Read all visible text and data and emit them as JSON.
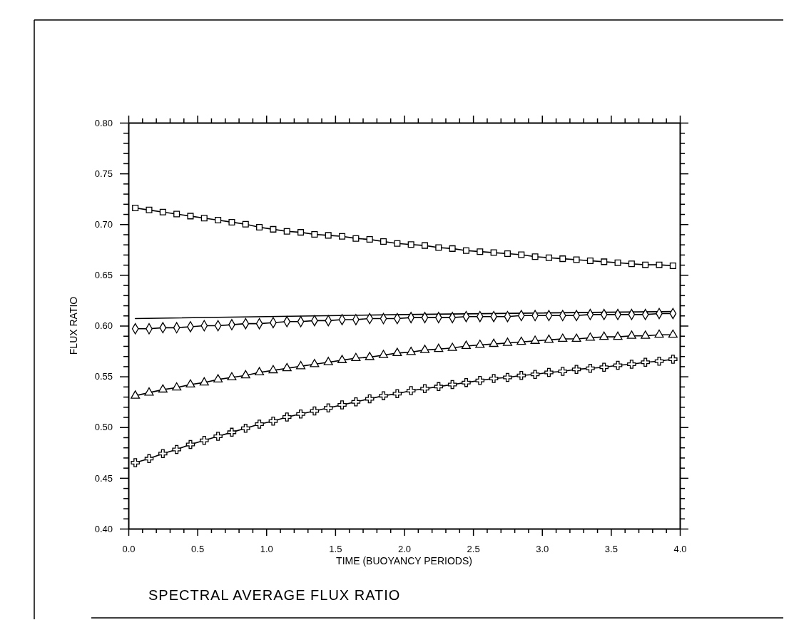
{
  "chart_data": {
    "type": "line",
    "title": "SPECTRAL AVERAGE FLUX RATIO",
    "xlabel": "TIME (BUOYANCY PERIODS)",
    "ylabel": "FLUX RATIO",
    "x": [
      0.05,
      0.15,
      0.25,
      0.35,
      0.45,
      0.55,
      0.65,
      0.75,
      0.85,
      0.95,
      1.05,
      1.15,
      1.25,
      1.35,
      1.45,
      1.55,
      1.65,
      1.75,
      1.85,
      1.95,
      2.05,
      2.15,
      2.25,
      2.35,
      2.45,
      2.55,
      2.65,
      2.75,
      2.85,
      2.95,
      3.05,
      3.15,
      3.25,
      3.35,
      3.45,
      3.55,
      3.65,
      3.75,
      3.85,
      3.95
    ],
    "series": [
      {
        "color": "#000000",
        "marker": "square",
        "values": [
          0.716,
          0.714,
          0.712,
          0.71,
          0.708,
          0.706,
          0.704,
          0.702,
          0.7,
          0.697,
          0.695,
          0.693,
          0.692,
          0.69,
          0.689,
          0.688,
          0.686,
          0.685,
          0.683,
          0.681,
          0.68,
          0.679,
          0.677,
          0.676,
          0.674,
          0.673,
          0.672,
          0.671,
          0.67,
          0.668,
          0.667,
          0.666,
          0.665,
          0.664,
          0.663,
          0.662,
          0.661,
          0.66,
          0.66,
          0.659
        ]
      },
      {
        "color": "#000000",
        "marker": "none",
        "x": [
          0.05,
          2.0,
          3.95
        ],
        "values": [
          0.607,
          0.611,
          0.614
        ]
      },
      {
        "color": "#000000",
        "marker": "diamond",
        "values": [
          0.597,
          0.597,
          0.598,
          0.598,
          0.599,
          0.6,
          0.6,
          0.601,
          0.602,
          0.602,
          0.603,
          0.604,
          0.604,
          0.605,
          0.605,
          0.606,
          0.606,
          0.607,
          0.607,
          0.607,
          0.608,
          0.608,
          0.608,
          0.608,
          0.609,
          0.609,
          0.609,
          0.609,
          0.61,
          0.61,
          0.61,
          0.61,
          0.61,
          0.611,
          0.611,
          0.611,
          0.611,
          0.611,
          0.612,
          0.612
        ]
      },
      {
        "color": "#000000",
        "marker": "triangle",
        "values": [
          0.531,
          0.534,
          0.537,
          0.539,
          0.542,
          0.544,
          0.547,
          0.549,
          0.551,
          0.554,
          0.556,
          0.558,
          0.56,
          0.562,
          0.564,
          0.566,
          0.568,
          0.569,
          0.571,
          0.573,
          0.574,
          0.576,
          0.577,
          0.578,
          0.58,
          0.581,
          0.582,
          0.583,
          0.584,
          0.585,
          0.586,
          0.587,
          0.587,
          0.588,
          0.589,
          0.589,
          0.59,
          0.59,
          0.591,
          0.591
        ]
      },
      {
        "color": "#000000",
        "marker": "cross",
        "values": [
          0.465,
          0.469,
          0.474,
          0.478,
          0.483,
          0.487,
          0.491,
          0.495,
          0.499,
          0.503,
          0.506,
          0.51,
          0.513,
          0.516,
          0.519,
          0.522,
          0.525,
          0.528,
          0.531,
          0.533,
          0.536,
          0.538,
          0.54,
          0.542,
          0.544,
          0.546,
          0.548,
          0.549,
          0.551,
          0.552,
          0.554,
          0.555,
          0.557,
          0.558,
          0.559,
          0.561,
          0.562,
          0.564,
          0.565,
          0.567
        ]
      }
    ],
    "xlim": [
      0,
      4
    ],
    "xticks": [
      {
        "value": 0,
        "label": "0.0"
      },
      {
        "value": 0.1,
        "label": null
      },
      {
        "value": 0.2,
        "label": null
      },
      {
        "value": 0.3,
        "label": null
      },
      {
        "value": 0.4,
        "label": null
      },
      {
        "value": 0.5,
        "label": "0.5"
      },
      {
        "value": 0.6,
        "label": null
      },
      {
        "value": 0.7,
        "label": null
      },
      {
        "value": 0.8,
        "label": null
      },
      {
        "value": 0.9,
        "label": null
      },
      {
        "value": 1,
        "label": "1.0"
      },
      {
        "value": 1.1,
        "label": null
      },
      {
        "value": 1.2,
        "label": null
      },
      {
        "value": 1.3,
        "label": null
      },
      {
        "value": 1.4,
        "label": null
      },
      {
        "value": 1.5,
        "label": "1.5"
      },
      {
        "value": 1.6,
        "label": null
      },
      {
        "value": 1.7,
        "label": null
      },
      {
        "value": 1.8,
        "label": null
      },
      {
        "value": 1.9,
        "label": null
      },
      {
        "value": 2,
        "label": "2.0"
      },
      {
        "value": 2.1,
        "label": null
      },
      {
        "value": 2.2,
        "label": null
      },
      {
        "value": 2.3,
        "label": null
      },
      {
        "value": 2.4,
        "label": null
      },
      {
        "value": 2.5,
        "label": "2.5"
      },
      {
        "value": 2.6,
        "label": null
      },
      {
        "value": 2.7,
        "label": null
      },
      {
        "value": 2.8,
        "label": null
      },
      {
        "value": 2.9,
        "label": null
      },
      {
        "value": 3,
        "label": "3.0"
      },
      {
        "value": 3.1,
        "label": null
      },
      {
        "value": 3.2,
        "label": null
      },
      {
        "value": 3.3,
        "label": null
      },
      {
        "value": 3.4,
        "label": null
      },
      {
        "value": 3.5,
        "label": "3.5"
      },
      {
        "value": 3.6,
        "label": null
      },
      {
        "value": 3.7,
        "label": null
      },
      {
        "value": 3.8,
        "label": null
      },
      {
        "value": 3.9,
        "label": null
      },
      {
        "value": 4,
        "label": "4.0"
      }
    ],
    "ylim": [
      0.4,
      0.8
    ],
    "yticks": [
      {
        "value": 0.4,
        "label": "0.40"
      },
      {
        "value": 0.41,
        "label": null
      },
      {
        "value": 0.42,
        "label": null
      },
      {
        "value": 0.43,
        "label": null
      },
      {
        "value": 0.44,
        "label": null
      },
      {
        "value": 0.45,
        "label": "0.45"
      },
      {
        "value": 0.46,
        "label": null
      },
      {
        "value": 0.47,
        "label": null
      },
      {
        "value": 0.48,
        "label": null
      },
      {
        "value": 0.49,
        "label": null
      },
      {
        "value": 0.5,
        "label": "0.50"
      },
      {
        "value": 0.51,
        "label": null
      },
      {
        "value": 0.52,
        "label": null
      },
      {
        "value": 0.53,
        "label": null
      },
      {
        "value": 0.54,
        "label": null
      },
      {
        "value": 0.55,
        "label": "0.55"
      },
      {
        "value": 0.56,
        "label": null
      },
      {
        "value": 0.57,
        "label": null
      },
      {
        "value": 0.58,
        "label": null
      },
      {
        "value": 0.59,
        "label": null
      },
      {
        "value": 0.6,
        "label": "0.60"
      },
      {
        "value": 0.61,
        "label": null
      },
      {
        "value": 0.62,
        "label": null
      },
      {
        "value": 0.63,
        "label": null
      },
      {
        "value": 0.64,
        "label": null
      },
      {
        "value": 0.65,
        "label": "0.65"
      },
      {
        "value": 0.66,
        "label": null
      },
      {
        "value": 0.67,
        "label": null
      },
      {
        "value": 0.68,
        "label": null
      },
      {
        "value": 0.69,
        "label": null
      },
      {
        "value": 0.7,
        "label": "0.70"
      },
      {
        "value": 0.71,
        "label": null
      },
      {
        "value": 0.72,
        "label": null
      },
      {
        "value": 0.73,
        "label": null
      },
      {
        "value": 0.74,
        "label": null
      },
      {
        "value": 0.75,
        "label": "0.75"
      },
      {
        "value": 0.76,
        "label": null
      },
      {
        "value": 0.77,
        "label": null
      },
      {
        "value": 0.78,
        "label": null
      },
      {
        "value": 0.79,
        "label": null
      },
      {
        "value": 0.8,
        "label": "0.80"
      }
    ],
    "grid": false,
    "legend": false,
    "line_style": "solid"
  }
}
